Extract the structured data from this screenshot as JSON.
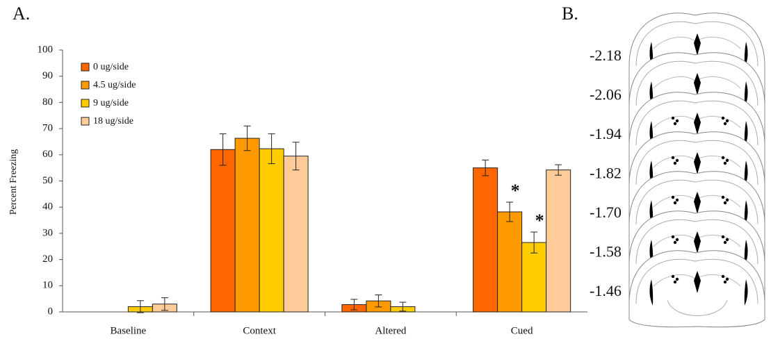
{
  "chart_data": {
    "type": "bar",
    "panel_label": "A.",
    "ylabel": "Percent Freezing",
    "categories": [
      "Baseline",
      "Context",
      "Altered",
      "Cued"
    ],
    "series": [
      {
        "name": "0 ug/side",
        "color": "#ff6600",
        "values": [
          null,
          62.0,
          2.8,
          55.0
        ],
        "errors": [
          null,
          6.0,
          2.0,
          3.0
        ]
      },
      {
        "name": "4.5 ug/side",
        "color": "#ff9900",
        "values": [
          null,
          66.3,
          4.2,
          38.2
        ],
        "errors": [
          null,
          4.7,
          2.3,
          3.7
        ]
      },
      {
        "name": "9 ug/side",
        "color": "#ffcc00",
        "values": [
          2.0,
          62.3,
          2.0,
          26.5
        ],
        "errors": [
          2.3,
          5.7,
          1.7,
          4.0
        ]
      },
      {
        "name": "18 ug/side",
        "color": "#ffcc99",
        "values": [
          3.0,
          59.5,
          null,
          54.2
        ],
        "errors": [
          2.4,
          5.3,
          null,
          2.0
        ]
      }
    ],
    "significance": [
      {
        "label": "*",
        "series": 1,
        "category": 3
      },
      {
        "label": "*",
        "series": 2,
        "category": 3
      }
    ],
    "ylim": [
      0,
      100
    ],
    "yticks": [
      0,
      10,
      20,
      30,
      40,
      50,
      60,
      70,
      80,
      90,
      100
    ],
    "grid": false,
    "legend": "upper-left"
  },
  "diagram": {
    "panel_label": "B.",
    "levels": [
      "-2.18",
      "-2.06",
      "-1.94",
      "-1.82",
      "-1.70",
      "-1.58",
      "-1.46"
    ]
  }
}
